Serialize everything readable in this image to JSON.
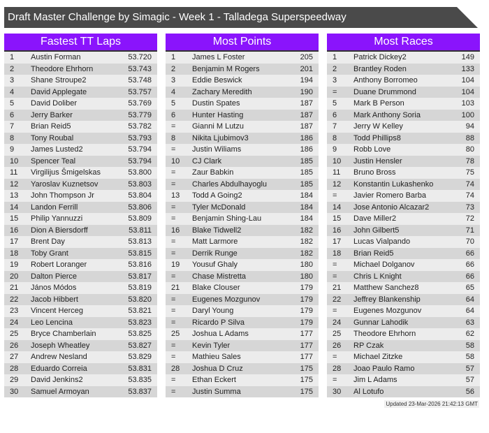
{
  "title": "Draft Master Challenge by Simagic - Week 1 - Talladega Superspeedway",
  "boards": [
    {
      "heading": "Fastest TT Laps",
      "rows": [
        [
          "1",
          "Austin Forman",
          "53.720"
        ],
        [
          "2",
          "Theodore Ehrhorn",
          "53.743"
        ],
        [
          "3",
          "Shane Stroupe2",
          "53.748"
        ],
        [
          "4",
          "David Applegate",
          "53.757"
        ],
        [
          "5",
          "David Doliber",
          "53.769"
        ],
        [
          "6",
          "Jerry Barker",
          "53.779"
        ],
        [
          "7",
          "Brian Reid5",
          "53.782"
        ],
        [
          "8",
          "Tony Roubal",
          "53.793"
        ],
        [
          "9",
          "James Lusted2",
          "53.794"
        ],
        [
          "10",
          "Spencer Teal",
          "53.794"
        ],
        [
          "11",
          "Virgilijus Šmigelskas",
          "53.800"
        ],
        [
          "12",
          "Yaroslav Kuznetsov",
          "53.803"
        ],
        [
          "13",
          "John Thompson Jr",
          "53.804"
        ],
        [
          "14",
          "Landon Ferrill",
          "53.806"
        ],
        [
          "15",
          "Philip Yannuzzi",
          "53.809"
        ],
        [
          "16",
          "Dion A Biersdorff",
          "53.811"
        ],
        [
          "17",
          "Brent Day",
          "53.813"
        ],
        [
          "18",
          "Toby Grant",
          "53.815"
        ],
        [
          "19",
          "Robert Loranger",
          "53.816"
        ],
        [
          "20",
          "Dalton Pierce",
          "53.817"
        ],
        [
          "21",
          "János Módos",
          "53.819"
        ],
        [
          "22",
          "Jacob Hibbert",
          "53.820"
        ],
        [
          "23",
          "Vincent Herceg",
          "53.821"
        ],
        [
          "24",
          "Leo Lencina",
          "53.823"
        ],
        [
          "25",
          "Bryce Chamberlain",
          "53.825"
        ],
        [
          "26",
          "Joseph Wheatley",
          "53.827"
        ],
        [
          "27",
          "Andrew Nesland",
          "53.829"
        ],
        [
          "28",
          "Eduardo Correia",
          "53.831"
        ],
        [
          "29",
          "David Jenkins2",
          "53.835"
        ],
        [
          "30",
          "Samuel Armoyan",
          "53.837"
        ]
      ]
    },
    {
      "heading": "Most Points",
      "rows": [
        [
          "1",
          "James L Foster",
          "205"
        ],
        [
          "2",
          "Benjamin M Rogers",
          "201"
        ],
        [
          "3",
          "Eddie Beswick",
          "194"
        ],
        [
          "4",
          "Zachary Meredith",
          "190"
        ],
        [
          "5",
          "Dustin Spates",
          "187"
        ],
        [
          "6",
          "Hunter Hasting",
          "187"
        ],
        [
          "=",
          "Gianni M Lutzu",
          "187"
        ],
        [
          "8",
          "Nikita Ljubimov3",
          "186"
        ],
        [
          "=",
          "Justin Wiliams",
          "186"
        ],
        [
          "10",
          "CJ Clark",
          "185"
        ],
        [
          "=",
          "Zaur Babkin",
          "185"
        ],
        [
          "=",
          "Charles Abdulhayoglu",
          "185"
        ],
        [
          "13",
          "Todd A Going2",
          "184"
        ],
        [
          "=",
          "Tyler McDonald",
          "184"
        ],
        [
          "=",
          "Benjamin Shing-Lau",
          "184"
        ],
        [
          "16",
          "Blake Tidwell2",
          "182"
        ],
        [
          "=",
          "Matt Larmore",
          "182"
        ],
        [
          "=",
          "Derrik Runge",
          "182"
        ],
        [
          "19",
          "Yousuf Ghaly",
          "180"
        ],
        [
          "=",
          "Chase Mistretta",
          "180"
        ],
        [
          "21",
          "Blake Clouser",
          "179"
        ],
        [
          "=",
          "Eugenes Mozgunov",
          "179"
        ],
        [
          "=",
          "Daryl Young",
          "179"
        ],
        [
          "=",
          "Ricardo P Silva",
          "179"
        ],
        [
          "25",
          "Joshua L Adams",
          "177"
        ],
        [
          "=",
          "Kevin Tyler",
          "177"
        ],
        [
          "=",
          "Mathieu Sales",
          "177"
        ],
        [
          "28",
          "Joshua D Cruz",
          "175"
        ],
        [
          "=",
          "Ethan Eckert",
          "175"
        ],
        [
          "=",
          "Justin Summa",
          "175"
        ]
      ]
    },
    {
      "heading": "Most Races",
      "rows": [
        [
          "1",
          "Patrick Dickey2",
          "149"
        ],
        [
          "2",
          "Brantley Roden",
          "133"
        ],
        [
          "3",
          "Anthony Borromeo",
          "104"
        ],
        [
          "=",
          "Duane Drummond",
          "104"
        ],
        [
          "5",
          "Mark B Person",
          "103"
        ],
        [
          "6",
          "Mark Anthony Soria",
          "100"
        ],
        [
          "7",
          "Jerry W Kelley",
          "94"
        ],
        [
          "8",
          "Todd Phillips8",
          "88"
        ],
        [
          "9",
          "Robb Love",
          "80"
        ],
        [
          "10",
          "Justin Hensler",
          "78"
        ],
        [
          "11",
          "Bruno Bross",
          "75"
        ],
        [
          "12",
          "Konstantin Lukashenko",
          "74"
        ],
        [
          "=",
          "Javier Romero Barba",
          "74"
        ],
        [
          "14",
          "Jose Antonio Alcazar2",
          "73"
        ],
        [
          "15",
          "Dave Miller2",
          "72"
        ],
        [
          "16",
          "John Gilbert5",
          "71"
        ],
        [
          "17",
          "Lucas Vialpando",
          "70"
        ],
        [
          "18",
          "Brian Reid5",
          "66"
        ],
        [
          "=",
          "Michael Dolganov",
          "66"
        ],
        [
          "=",
          "Chris L Knight",
          "66"
        ],
        [
          "21",
          "Matthew Sanchez8",
          "65"
        ],
        [
          "22",
          "Jeffrey Blankenship",
          "64"
        ],
        [
          "=",
          "Eugenes Mozgunov",
          "64"
        ],
        [
          "24",
          "Gunnar Lahodik",
          "63"
        ],
        [
          "25",
          "Theodore Ehrhorn",
          "62"
        ],
        [
          "26",
          "RP Czak",
          "58"
        ],
        [
          "=",
          "Michael Zitzke",
          "58"
        ],
        [
          "28",
          "Joao Paulo Ramo",
          "57"
        ],
        [
          "=",
          "Jim L Adams",
          "57"
        ],
        [
          "30",
          "Al Lotufo",
          "56"
        ]
      ]
    }
  ],
  "updated": "Updated 23-Mar-2026 21:42:13 GMT",
  "colors": {
    "header": "#8a14fc",
    "title_bar": "#4a4a4a"
  }
}
